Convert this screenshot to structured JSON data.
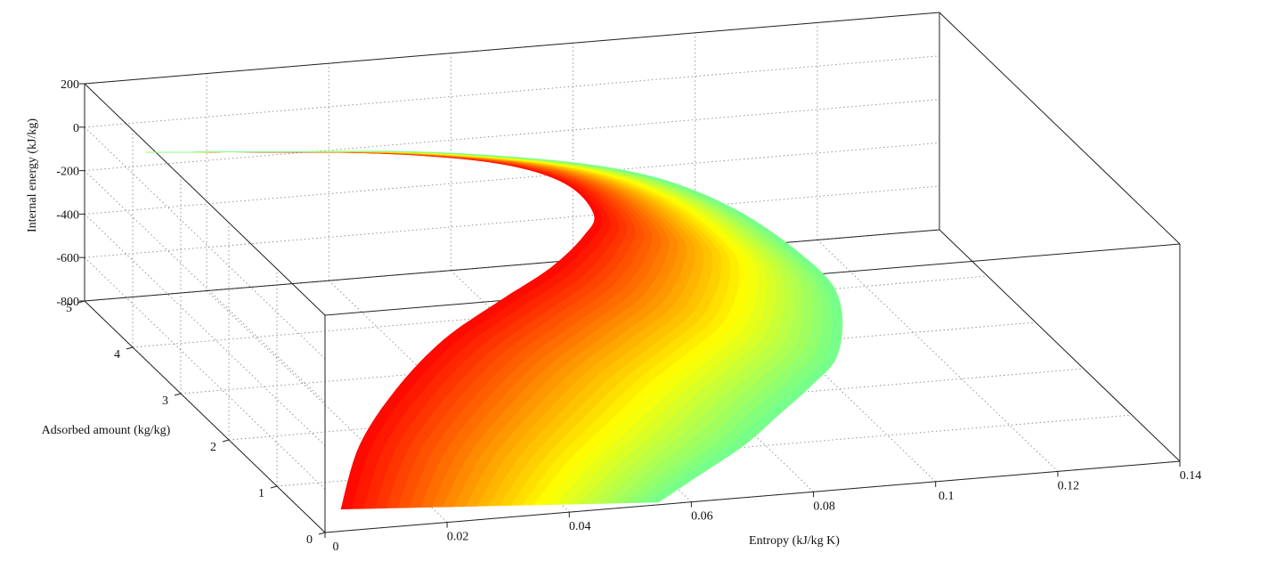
{
  "chart_data": {
    "type": "surface",
    "title": "",
    "xlabel": "Entropy (kJ/kg K)",
    "ylabel": "Adsorbed amount (kg/kg)",
    "zlabel": "Internal energy (kJ/kg)",
    "xlim": [
      0,
      0.14
    ],
    "ylim": [
      0,
      5
    ],
    "zlim": [
      -800,
      200
    ],
    "x_ticks": [
      0,
      0.02,
      0.04,
      0.06,
      0.08,
      0.1,
      0.12,
      0.14
    ],
    "x_tick_labels": [
      "0",
      "0.02",
      "0.04",
      "0.06",
      "0.08",
      "0.1",
      "0.12",
      "0.14"
    ],
    "y_ticks": [
      0,
      1,
      2,
      3,
      4,
      5
    ],
    "y_tick_labels": [
      "0",
      "1",
      "2",
      "3",
      "4",
      "5"
    ],
    "z_ticks": [
      -800,
      -600,
      -400,
      -200,
      0,
      200
    ],
    "z_tick_labels": [
      "-800",
      "-600",
      "-400",
      "-200",
      "0",
      "200"
    ],
    "grid": true,
    "colormap": "jet",
    "color_by": "Internal energy (kJ/kg)",
    "surface_outline": {
      "inner_edge": [
        {
          "x": 0.003,
          "y": 0.05,
          "z": -710
        },
        {
          "x": 0.01,
          "y": 0.55,
          "z": -540
        },
        {
          "x": 0.02,
          "y": 1.05,
          "z": -410
        },
        {
          "x": 0.032,
          "y": 1.6,
          "z": -330
        },
        {
          "x": 0.045,
          "y": 2.1,
          "z": -290
        },
        {
          "x": 0.057,
          "y": 2.55,
          "z": -260
        },
        {
          "x": 0.066,
          "y": 3.0,
          "z": -230
        },
        {
          "x": 0.07,
          "y": 3.3,
          "z": -200
        },
        {
          "x": 0.068,
          "y": 3.65,
          "z": -130
        },
        {
          "x": 0.06,
          "y": 4.0,
          "z": -95
        },
        {
          "x": 0.045,
          "y": 4.4,
          "z": -100
        },
        {
          "x": 0.025,
          "y": 4.75,
          "z": -120
        },
        {
          "x": 0.01,
          "y": 5.0,
          "z": -140
        }
      ],
      "outer_edge": [
        {
          "x": 0.055,
          "y": 0.05,
          "z": -800
        },
        {
          "x": 0.066,
          "y": 0.55,
          "z": -800
        },
        {
          "x": 0.077,
          "y": 1.05,
          "z": -800
        },
        {
          "x": 0.087,
          "y": 1.6,
          "z": -800
        },
        {
          "x": 0.096,
          "y": 2.1,
          "z": -800
        },
        {
          "x": 0.104,
          "y": 2.55,
          "z": -770
        },
        {
          "x": 0.108,
          "y": 3.0,
          "z": -640
        },
        {
          "x": 0.106,
          "y": 3.3,
          "z": -520
        },
        {
          "x": 0.095,
          "y": 3.65,
          "z": -300
        },
        {
          "x": 0.08,
          "y": 4.0,
          "z": -170
        },
        {
          "x": 0.055,
          "y": 4.4,
          "z": -120
        },
        {
          "x": 0.03,
          "y": 4.75,
          "z": -130
        },
        {
          "x": 0.01,
          "y": 5.0,
          "z": -140
        }
      ]
    }
  }
}
